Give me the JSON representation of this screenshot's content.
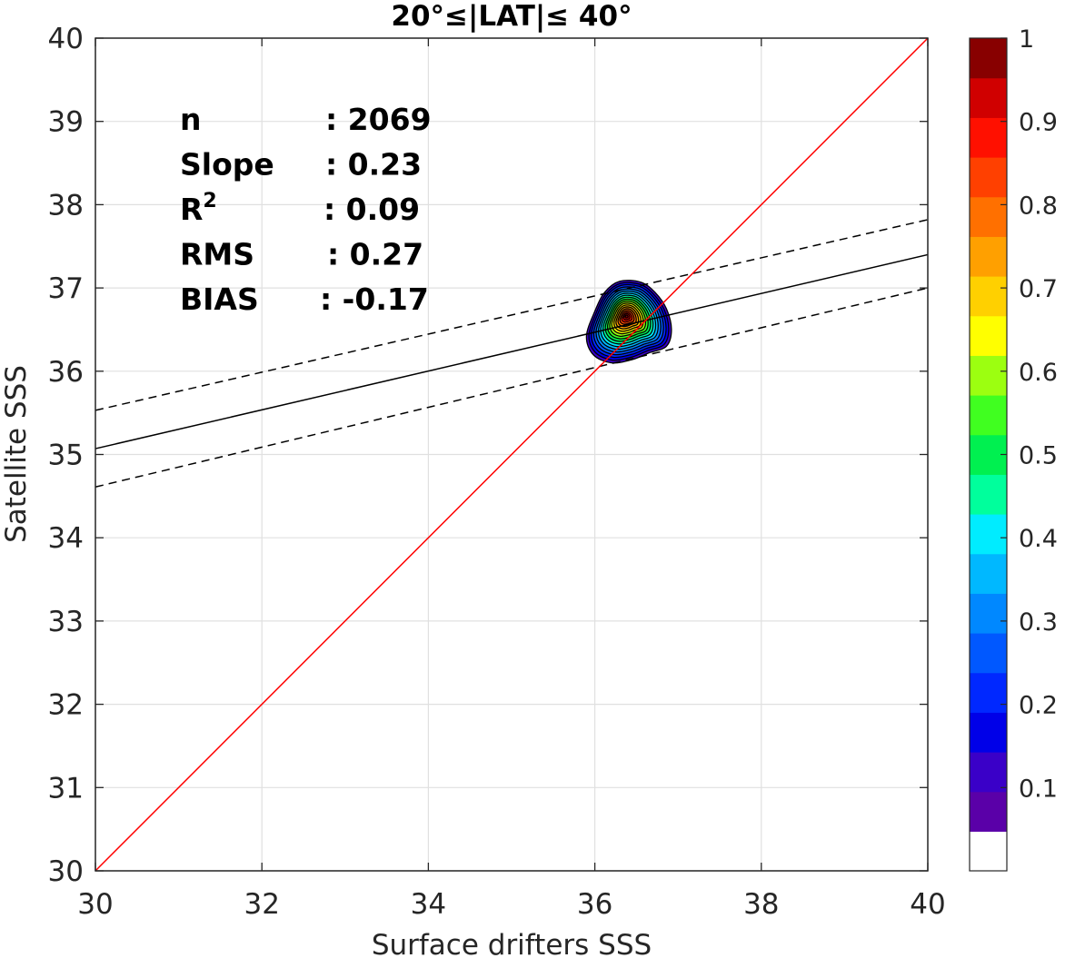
{
  "chart_data": {
    "type": "contour",
    "title": "20°≤|LAT|≤ 40°",
    "xlabel": "Surface drifters SSS",
    "ylabel": "Satellite SSS",
    "xlim": [
      30,
      40
    ],
    "ylim": [
      30,
      40
    ],
    "xticks": [
      "30",
      "32",
      "34",
      "36",
      "38",
      "40"
    ],
    "yticks": [
      "30",
      "31",
      "32",
      "33",
      "34",
      "35",
      "36",
      "37",
      "38",
      "39",
      "40"
    ],
    "grid": true,
    "stats": [
      {
        "label": "n",
        "value": ": 2069"
      },
      {
        "label": "Slope",
        "value": ": 0.23"
      },
      {
        "label": "R",
        "sup": "2",
        "value": ": 0.09"
      },
      {
        "label": "RMS",
        "value": ": 0.27"
      },
      {
        "label": "BIAS",
        "value": ": -0.17"
      }
    ],
    "lines": {
      "identity": {
        "x": [
          30,
          40
        ],
        "y": [
          30,
          40
        ],
        "color": "#ff0000"
      },
      "fit": {
        "x": [
          30,
          40
        ],
        "y": [
          35.07,
          37.4
        ],
        "color": "#000000"
      },
      "fit_upper": {
        "x": [
          30,
          40
        ],
        "y": [
          35.53,
          37.82
        ],
        "color": "#000000",
        "dash": true
      },
      "fit_lower": {
        "x": [
          30,
          40
        ],
        "y": [
          34.61,
          37.0
        ],
        "color": "#000000",
        "dash": true
      }
    },
    "density": {
      "center": [
        36.42,
        36.61
      ],
      "levels": [
        0.05,
        0.1,
        0.15,
        0.2,
        0.25,
        0.3,
        0.35,
        0.4,
        0.45,
        0.5,
        0.55,
        0.6,
        0.65,
        0.7,
        0.75,
        0.8,
        0.85,
        0.9,
        0.95
      ],
      "outer_boundary": [
        [
          36.3,
          37.08
        ],
        [
          36.55,
          37.07
        ],
        [
          36.72,
          36.95
        ],
        [
          36.86,
          36.75
        ],
        [
          36.92,
          36.5
        ],
        [
          36.86,
          36.3
        ],
        [
          36.65,
          36.22
        ],
        [
          36.45,
          36.14
        ],
        [
          36.2,
          36.1
        ],
        [
          35.98,
          36.2
        ],
        [
          35.9,
          36.42
        ],
        [
          36.0,
          36.72
        ],
        [
          36.12,
          36.95
        ]
      ]
    },
    "colorbar": {
      "ticks": [
        "0.1",
        "0.2",
        "0.3",
        "0.4",
        "0.5",
        "0.6",
        "0.7",
        "0.8",
        "0.9",
        "1"
      ],
      "range": [
        0,
        1
      ],
      "colors": [
        "#ffffff",
        "#5a00a8",
        "#3a00c8",
        "#0000e8",
        "#0028ff",
        "#0058ff",
        "#0088ff",
        "#00b8ff",
        "#00ecff",
        "#00ff9c",
        "#00f050",
        "#40ff20",
        "#9cff10",
        "#ffff00",
        "#ffd000",
        "#ffa000",
        "#ff7000",
        "#ff4000",
        "#ff1000",
        "#d00000",
        "#880000"
      ]
    }
  }
}
